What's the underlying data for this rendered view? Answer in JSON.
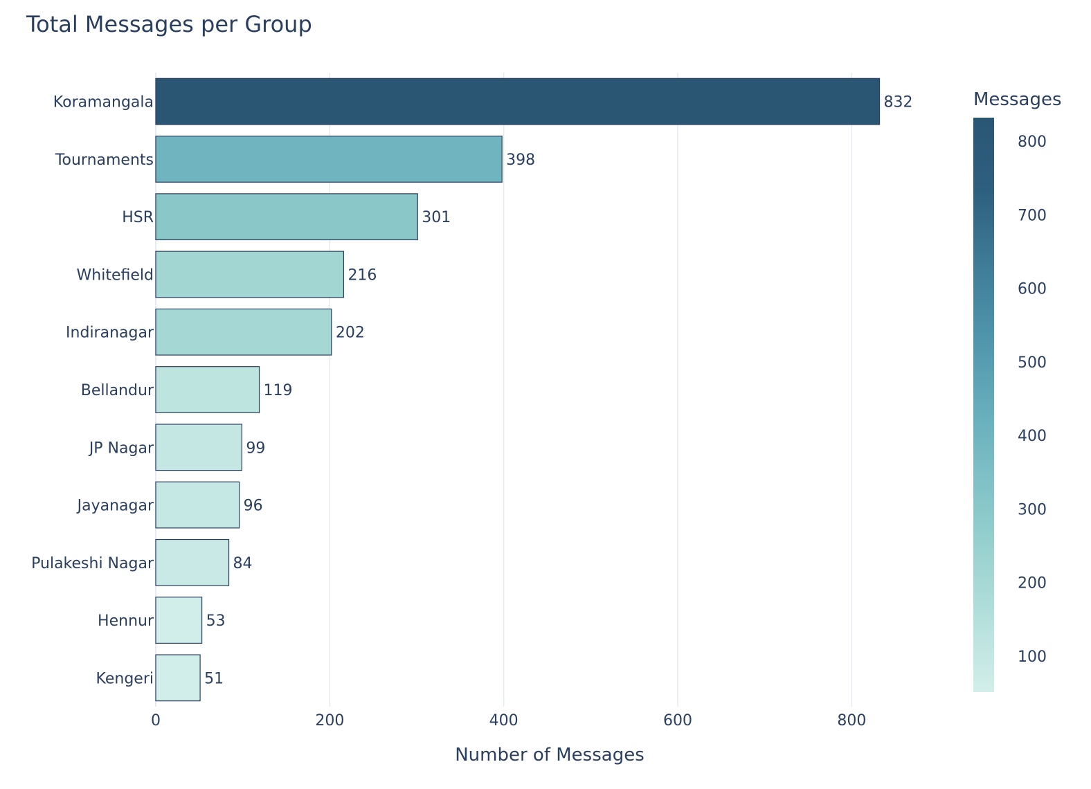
{
  "chart_data": {
    "type": "bar",
    "orientation": "horizontal",
    "title": "Total Messages per Group",
    "xlabel": "Number of Messages",
    "ylabel": "",
    "xlim": [
      0,
      900
    ],
    "x_ticks": [
      0,
      200,
      400,
      600,
      800
    ],
    "grid": true,
    "categories": [
      "Koramangala",
      "Tournaments",
      "HSR",
      "Whitefield",
      "Indiranagar",
      "Bellandur",
      "JP Nagar",
      "Jayanagar",
      "Pulakeshi Nagar",
      "Hennur",
      "Kengeri"
    ],
    "values": [
      832,
      398,
      301,
      216,
      202,
      119,
      99,
      96,
      84,
      53,
      51
    ],
    "data_labels": [
      "832",
      "398",
      "301",
      "216",
      "202",
      "119",
      "99",
      "96",
      "84",
      "53",
      "51"
    ],
    "colorbar": {
      "title": "Messages",
      "range": [
        51,
        832
      ],
      "ticks": [
        100,
        200,
        300,
        400,
        500,
        600,
        700,
        800
      ],
      "colors": [
        "#d2eeea",
        "#b5e0dc",
        "#98d1cf",
        "#7ec0c5",
        "#65abbb",
        "#4f93aa",
        "#3e7a96",
        "#2e5f7f",
        "#2a5674"
      ],
      "placement": "right"
    },
    "bar_outline_color": "#2a3f5f",
    "grid_color": "#e6ebf3"
  }
}
